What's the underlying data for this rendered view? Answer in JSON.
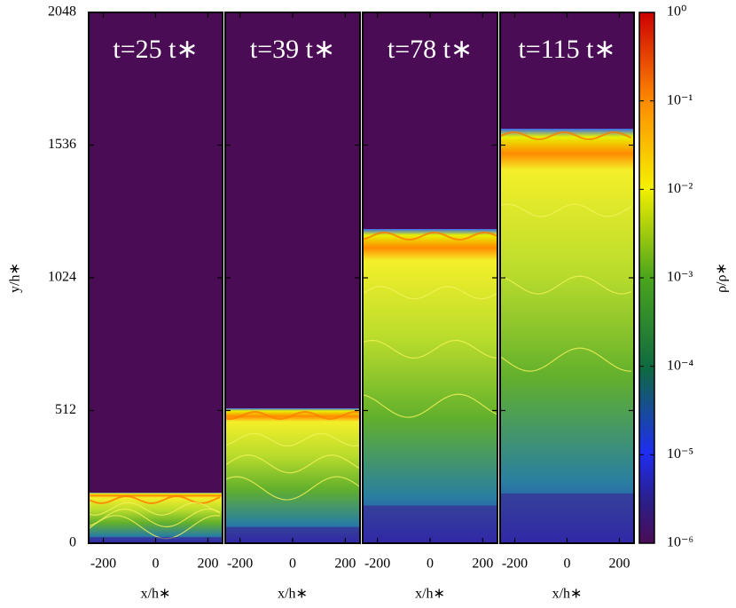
{
  "chart_data": [
    {
      "type": "heatmap",
      "title": "t=25 t∗",
      "xlabel": "x/h∗",
      "ylabel": "y/h∗",
      "xlim": [
        -256,
        256
      ],
      "xticks": [
        -200,
        0,
        200
      ],
      "ylim": [
        0,
        2048
      ],
      "yticks": [
        0,
        512,
        1024,
        1536,
        2048
      ]
    },
    {
      "type": "heatmap",
      "title": "t=39 t∗",
      "xlabel": "x/h∗",
      "xlim": [
        -256,
        256
      ],
      "xticks": [
        -200,
        0,
        200
      ],
      "ylim": [
        0,
        2048
      ]
    },
    {
      "type": "heatmap",
      "title": "t=78 t∗",
      "xlabel": "x/h∗",
      "xlim": [
        -256,
        256
      ],
      "xticks": [
        -200,
        0,
        200
      ],
      "ylim": [
        0,
        2048
      ]
    },
    {
      "type": "heatmap",
      "title": "t=115 t∗",
      "xlabel": "x/h∗",
      "xlim": [
        -256,
        256
      ],
      "xticks": [
        -200,
        0,
        200
      ],
      "ylim": [
        0,
        2048
      ]
    },
    {
      "type": "colorbar",
      "label": "ρ/ρ∗",
      "log_scale": true,
      "ylim": [
        1e-06,
        1
      ],
      "yticks": [
        {
          "value": 1e-06,
          "label": "10⁻⁶"
        },
        {
          "value": 1e-05,
          "label": "10⁻⁵"
        },
        {
          "value": 0.0001,
          "label": "10⁻⁴"
        },
        {
          "value": 0.001,
          "label": "10⁻³"
        },
        {
          "value": 0.01,
          "label": "10⁻²"
        },
        {
          "value": 0.1,
          "label": "10⁻¹"
        },
        {
          "value": 1,
          "label": "10⁰"
        }
      ]
    }
  ]
}
